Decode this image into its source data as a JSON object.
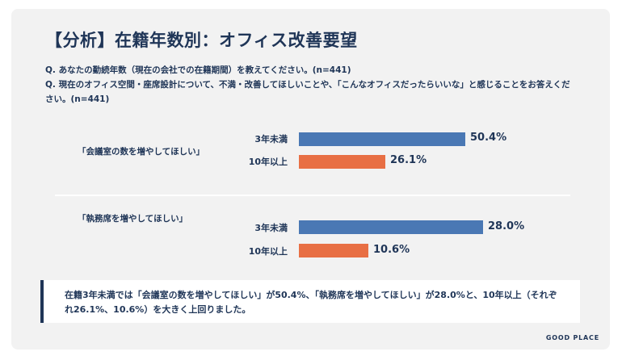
{
  "title": "【分析】在籍年数別：オフィス改善要望",
  "questions": [
    "Q. あなたの勤続年数（現在の会社での在籍期間）を教えてください。(n=441)",
    "Q. 現在のオフィス空間・座席設計について、不満・改善してほしいことや、「こんなオフィスだったらいいな」と感じることをお答えください。(n=441)"
  ],
  "colors": {
    "under_3_years": "#4a78b4",
    "over_10_years": "#e86f44",
    "text": "#1f3557"
  },
  "chart_data": [
    {
      "type": "bar",
      "orientation": "horizontal",
      "title": "「会議室の数を増やしてほしい」",
      "categories": [
        "3年未満",
        "10年以上"
      ],
      "values": [
        50.4,
        26.1
      ],
      "labels": [
        "50.4%",
        "26.1%"
      ],
      "unit": "%"
    },
    {
      "type": "bar",
      "orientation": "horizontal",
      "title": "「執務席を増やしてほしい」",
      "categories": [
        "3年未満",
        "10年以上"
      ],
      "values": [
        28.0,
        10.6
      ],
      "labels": [
        "28.0%",
        "10.6%"
      ],
      "unit": "%"
    }
  ],
  "summary": "在籍3年未満では「会議室の数を増やしてほしい」が50.4%、「執務席を増やしてほしい」が28.0%と、10年以上（それぞれ26.1%、10.6%）を大きく上回りました。",
  "brand": "GOOD PLACE"
}
